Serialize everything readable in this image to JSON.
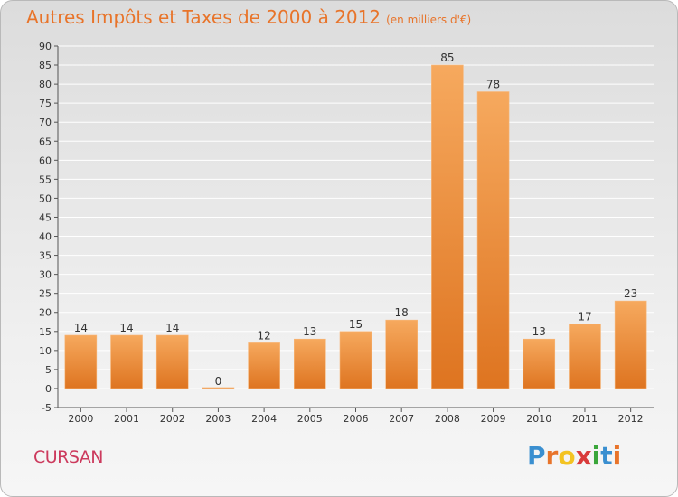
{
  "header": {
    "title": "Autres Impôts et Taxes de 2000 à 2012",
    "unit": "(en milliers d'€)"
  },
  "footer": {
    "commune": "CURSAN",
    "logo_letters": [
      "P",
      "r",
      "o",
      "x",
      "i",
      "t",
      "i"
    ],
    "logo_colors": [
      "#3a8fd0",
      "#e8742a",
      "#f3c322",
      "#d93a3a",
      "#3aa63a",
      "#3a8fd0",
      "#e8742a"
    ]
  },
  "colors": {
    "title": "#e8742a",
    "commune": "#cc3a5d",
    "bar_light": "#f5a55a",
    "bar_dark": "#e27a22",
    "grid": "#ffffff",
    "axis_text": "#333333"
  },
  "chart_data": {
    "type": "bar",
    "categories": [
      "2000",
      "2001",
      "2002",
      "2003",
      "2004",
      "2005",
      "2006",
      "2007",
      "2008",
      "2009",
      "2010",
      "2011",
      "2012"
    ],
    "values": [
      14,
      14,
      14,
      0,
      12,
      13,
      15,
      18,
      85,
      78,
      13,
      17,
      23
    ],
    "data_labels": [
      "14",
      "14",
      "14",
      "0",
      "12",
      "13",
      "15",
      "18",
      "85",
      "78",
      "13",
      "17",
      "23"
    ],
    "y_ticks": [
      -5,
      0,
      5,
      10,
      15,
      20,
      25,
      30,
      35,
      40,
      45,
      50,
      55,
      60,
      65,
      70,
      75,
      80,
      85,
      90
    ],
    "ylim": [
      -5,
      90
    ],
    "grid": true,
    "legend": "none"
  }
}
